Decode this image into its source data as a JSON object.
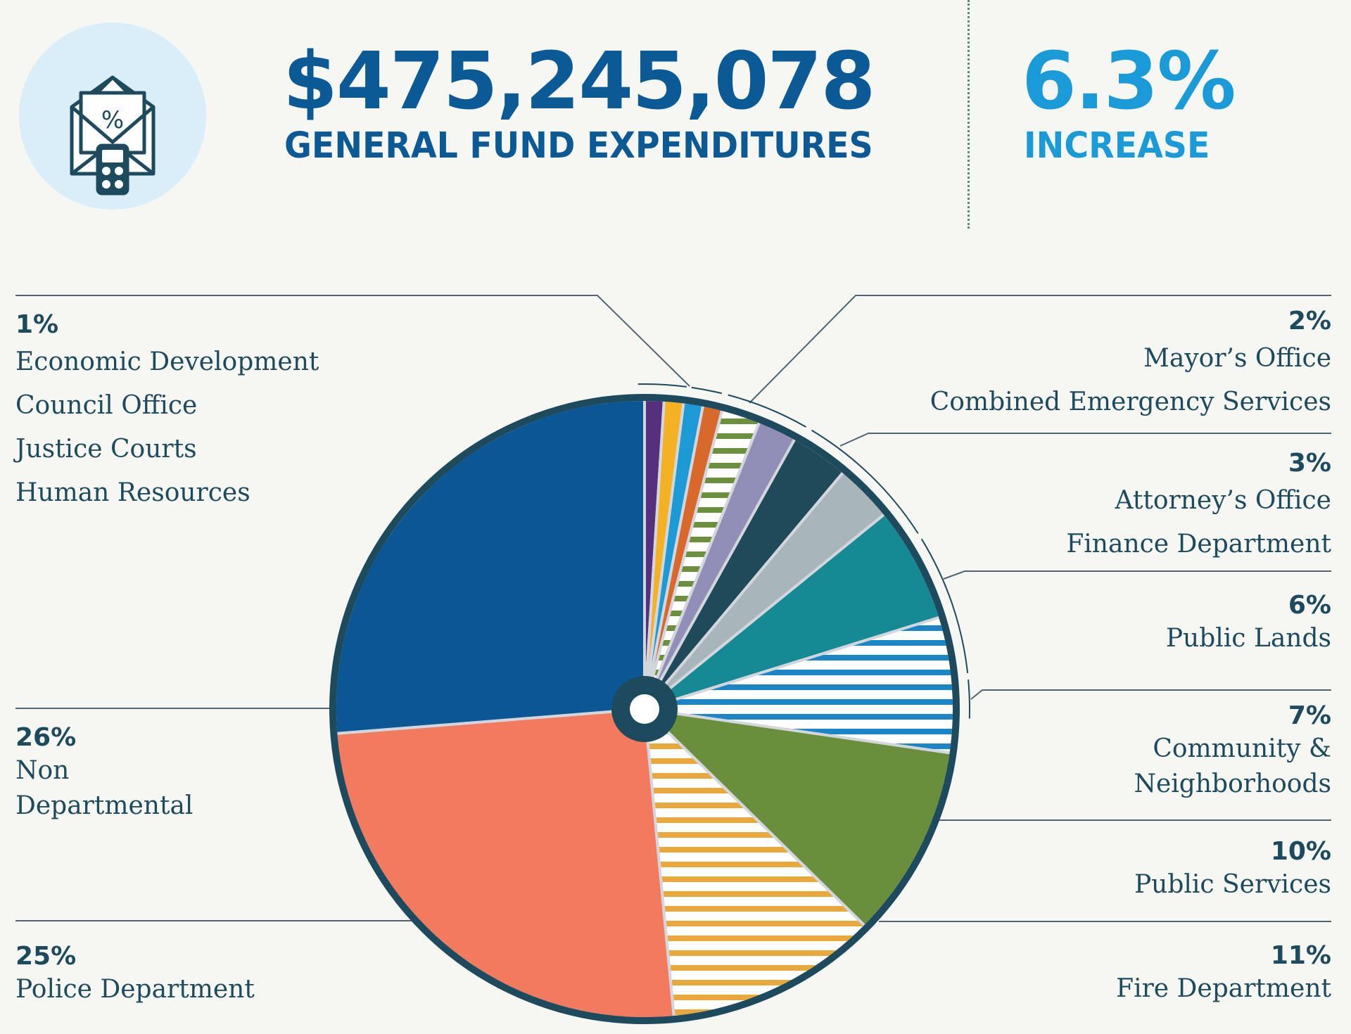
{
  "header": {
    "total": "$475,245,078",
    "total_label": "GENERAL FUND EXPENDITURES",
    "change": "6.3%",
    "change_label": "INCREASE",
    "icon": "envelope-percent-calculator-icon",
    "colors": {
      "total": "#0b5a96",
      "change": "#1a9ad6",
      "icon_bg": "#d9eef8"
    }
  },
  "legend": {
    "left": [
      {
        "percent": "1%",
        "labels": [
          "Economic Development",
          "Council Office",
          "Justice Courts",
          "Human Resources"
        ]
      },
      {
        "percent": "26%",
        "labels": [
          "Non",
          "Departmental"
        ]
      },
      {
        "percent": "25%",
        "labels": [
          "Police Department"
        ]
      }
    ],
    "right": [
      {
        "percent": "2%",
        "labels": [
          "Mayor’s Office",
          "Combined Emergency Services"
        ]
      },
      {
        "percent": "3%",
        "labels": [
          "Attorney’s Office",
          "Finance Department"
        ]
      },
      {
        "percent": "6%",
        "labels": [
          "Public Lands"
        ]
      },
      {
        "percent": "7%",
        "labels": [
          "Community &",
          "Neighborhoods"
        ]
      },
      {
        "percent": "10%",
        "labels": [
          "Public Services"
        ]
      },
      {
        "percent": "11%",
        "labels": [
          "Fire Department"
        ]
      }
    ]
  },
  "chart_data": {
    "type": "pie",
    "style": "donut with small center hole, clockwise from 12 o'clock",
    "slices": [
      {
        "label": "Economic Development",
        "value": 1,
        "color": "#55307f",
        "pattern": "solid"
      },
      {
        "label": "Council Office",
        "value": 1,
        "color": "#f4b223",
        "pattern": "solid"
      },
      {
        "label": "Justice Courts",
        "value": 1,
        "color": "#1c9ad6",
        "pattern": "solid"
      },
      {
        "label": "Human Resources",
        "value": 1,
        "color": "#d9692a",
        "pattern": "solid"
      },
      {
        "label": "Mayor’s Office",
        "value": 2,
        "color": "#6a8f3d",
        "pattern": "stripes"
      },
      {
        "label": "Combined Emergency Services",
        "value": 2,
        "color": "#8f8fb8",
        "pattern": "solid"
      },
      {
        "label": "Attorney’s Office",
        "value": 3,
        "color": "#1e4a5a",
        "pattern": "solid"
      },
      {
        "label": "Finance Department",
        "value": 3,
        "color": "#a8b5bb",
        "pattern": "solid"
      },
      {
        "label": "Public Lands",
        "value": 6,
        "color": "#168a94",
        "pattern": "solid"
      },
      {
        "label": "Community & Neighborhoods",
        "value": 7,
        "color": "#1a85c8",
        "pattern": "stripes"
      },
      {
        "label": "Public Services",
        "value": 10,
        "color": "#698f3d",
        "pattern": "solid"
      },
      {
        "label": "Fire Department",
        "value": 11,
        "color": "#e9a83b",
        "pattern": "stripes"
      },
      {
        "label": "Police Department",
        "value": 25,
        "color": "#f27b5f",
        "pattern": "solid"
      },
      {
        "label": "Non Departmental",
        "value": 26,
        "color": "#0b5796",
        "pattern": "solid"
      }
    ],
    "border_color": "#1d4a5c"
  }
}
